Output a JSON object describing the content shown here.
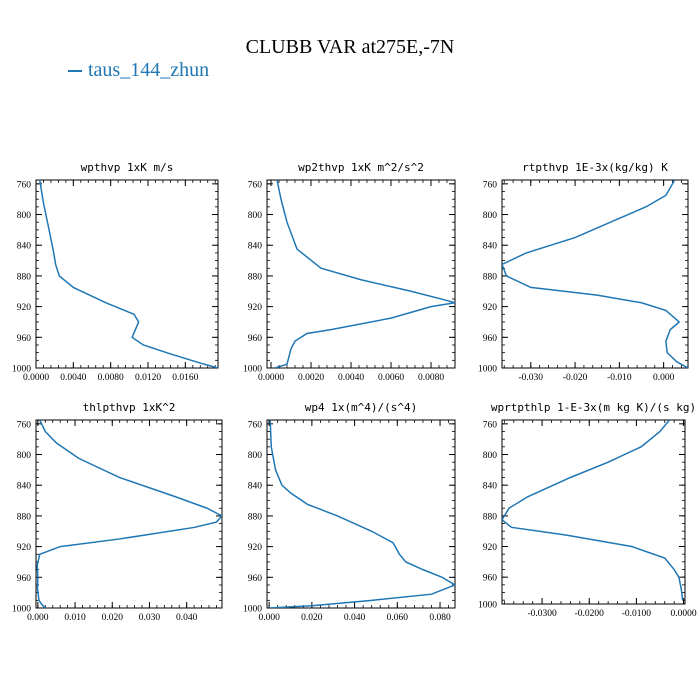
{
  "title": "CLUBB VAR at275E,-7N",
  "legend": {
    "label": "taus_144_zhun",
    "color": "#1f77b4"
  },
  "line_color": "#1f77b4",
  "chart_data": [
    {
      "type": "line",
      "title": "wpthvp  1xK m/s",
      "xlim": [
        0.0,
        0.0195
      ],
      "ylim": [
        1000,
        755
      ],
      "y_inverted": true,
      "xticks": [
        0.0,
        0.004,
        0.008,
        0.012,
        0.016
      ],
      "xtick_labels": [
        "0.0000",
        "0.0040",
        "0.0080",
        "0.0120",
        "0.0160"
      ],
      "yticks": [
        760,
        800,
        840,
        880,
        920,
        960,
        1000
      ],
      "series": [
        {
          "x": [
            0.0004,
            0.0008,
            0.0014,
            0.0019,
            0.0021,
            0.0025,
            0.004,
            0.0075,
            0.0105,
            0.011,
            0.0103,
            0.0115,
            0.0145,
            0.018,
            0.0195
          ],
          "y": [
            755,
            785,
            820,
            850,
            865,
            880,
            895,
            915,
            930,
            940,
            960,
            970,
            982,
            995,
            1000
          ]
        }
      ]
    },
    {
      "type": "line",
      "title": "wp2thvp  1xK m^2/s^2",
      "xlim": [
        -0.0002,
        0.0092
      ],
      "ylim": [
        1000,
        755
      ],
      "y_inverted": true,
      "xticks": [
        0.0,
        0.002,
        0.004,
        0.006,
        0.008
      ],
      "xtick_labels": [
        "0.0000",
        "0.0020",
        "0.0040",
        "0.0060",
        "0.0080"
      ],
      "yticks": [
        760,
        800,
        840,
        880,
        920,
        960,
        1000
      ],
      "series": [
        {
          "x": [
            0.0003,
            0.0005,
            0.0008,
            0.0013,
            0.0025,
            0.0045,
            0.007,
            0.0085,
            0.0092,
            0.008,
            0.006,
            0.003,
            0.0018,
            0.0012,
            0.001,
            0.0008,
            0.0002
          ],
          "y": [
            755,
            780,
            810,
            845,
            870,
            885,
            900,
            910,
            915,
            920,
            935,
            950,
            955,
            965,
            975,
            995,
            1000
          ]
        }
      ]
    },
    {
      "type": "line",
      "title": "rtpthvp  1E-3x(kg/kg) K",
      "xlim": [
        -0.0365,
        0.0055
      ],
      "ylim": [
        1000,
        755
      ],
      "y_inverted": true,
      "xticks": [
        -0.03,
        -0.02,
        -0.01,
        0.0
      ],
      "xtick_labels": [
        "-0.030",
        "-0.020",
        "-0.010",
        "0.000"
      ],
      "yticks": [
        760,
        800,
        840,
        880,
        920,
        960,
        1000
      ],
      "series": [
        {
          "x": [
            0.0025,
            0.0005,
            -0.004,
            -0.01,
            -0.02,
            -0.031,
            -0.0365,
            -0.0355,
            -0.03,
            -0.015,
            -0.005,
            0.0005,
            0.0025,
            0.0035,
            0.0015,
            0.0005,
            0.0008,
            0.003,
            0.0055
          ],
          "y": [
            755,
            775,
            790,
            805,
            830,
            850,
            865,
            880,
            895,
            905,
            915,
            925,
            935,
            940,
            950,
            965,
            980,
            992,
            1000
          ]
        }
      ]
    },
    {
      "type": "line",
      "title": "thlpthvp  1xK^2",
      "xlim": [
        -0.0005,
        0.0495
      ],
      "ylim": [
        1000,
        755
      ],
      "y_inverted": true,
      "xticks": [
        0.0,
        0.01,
        0.02,
        0.03,
        0.04
      ],
      "xtick_labels": [
        "0.000",
        "0.010",
        "0.020",
        "0.030",
        "0.040"
      ],
      "yticks": [
        760,
        800,
        840,
        880,
        920,
        960,
        1000
      ],
      "series": [
        {
          "x": [
            0.0005,
            0.002,
            0.005,
            0.011,
            0.022,
            0.037,
            0.0455,
            0.0495,
            0.048,
            0.042,
            0.022,
            0.006,
            0.0005,
            -0.0002,
            0.0,
            -0.0001,
            0.0003,
            0.001,
            0.002
          ],
          "y": [
            755,
            770,
            785,
            805,
            830,
            855,
            870,
            880,
            888,
            895,
            910,
            920,
            930,
            945,
            960,
            975,
            990,
            995,
            1000
          ]
        }
      ]
    },
    {
      "type": "line",
      "title": "wp4  1x(m^4)/(s^4)",
      "xlim": [
        -0.001,
        0.087
      ],
      "ylim": [
        1000,
        755
      ],
      "y_inverted": true,
      "xticks": [
        0.0,
        0.02,
        0.04,
        0.06,
        0.08
      ],
      "xtick_labels": [
        "0.000",
        "0.020",
        "0.040",
        "0.060",
        "0.080"
      ],
      "yticks": [
        760,
        800,
        840,
        880,
        920,
        960,
        1000
      ],
      "series": [
        {
          "x": [
            0.0005,
            0.001,
            0.003,
            0.006,
            0.01,
            0.018,
            0.032,
            0.048,
            0.058,
            0.061,
            0.064,
            0.072,
            0.081,
            0.087,
            0.076,
            0.048,
            0.02,
            0.0
          ],
          "y": [
            755,
            790,
            820,
            840,
            850,
            865,
            880,
            900,
            915,
            930,
            940,
            950,
            960,
            970,
            982,
            990,
            997,
            1000
          ]
        }
      ]
    },
    {
      "type": "line",
      "title": "wprtpthlp  1-E-3x(m kg K)/(s kg)",
      "xlim": [
        -0.0385,
        0.0003
      ],
      "ylim": [
        995,
        755
      ],
      "y_inverted": true,
      "xticks": [
        -0.03,
        -0.02,
        -0.01,
        0.0
      ],
      "xtick_labels": [
        "-0.0300",
        "-0.0200",
        "-0.0100",
        "0.0000"
      ],
      "yticks": [
        760,
        800,
        840,
        880,
        920,
        960,
        1000
      ],
      "series": [
        {
          "x": [
            -0.003,
            -0.005,
            -0.009,
            -0.016,
            -0.024,
            -0.033,
            -0.037,
            -0.0385,
            -0.0365,
            -0.025,
            -0.011,
            -0.004,
            -0.002,
            -0.001,
            -0.0005,
            -0.0002
          ],
          "y": [
            755,
            770,
            790,
            810,
            830,
            855,
            870,
            885,
            895,
            905,
            920,
            935,
            950,
            960,
            975,
            990
          ]
        }
      ]
    }
  ]
}
